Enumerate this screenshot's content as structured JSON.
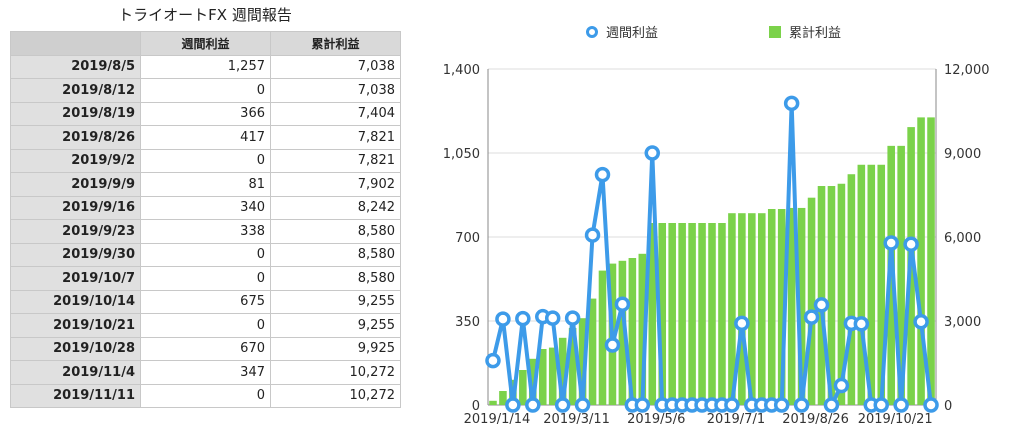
{
  "table": {
    "title": "トライオートFX 週間報告",
    "headers": [
      "",
      "週間利益",
      "累計利益"
    ],
    "rows": [
      [
        "2019/8/5",
        "1,257",
        "7,038"
      ],
      [
        "2019/8/12",
        "0",
        "7,038"
      ],
      [
        "2019/8/19",
        "366",
        "7,404"
      ],
      [
        "2019/8/26",
        "417",
        "7,821"
      ],
      [
        "2019/9/2",
        "0",
        "7,821"
      ],
      [
        "2019/9/9",
        "81",
        "7,902"
      ],
      [
        "2019/9/16",
        "340",
        "8,242"
      ],
      [
        "2019/9/23",
        "338",
        "8,580"
      ],
      [
        "2019/9/30",
        "0",
        "8,580"
      ],
      [
        "2019/10/7",
        "0",
        "8,580"
      ],
      [
        "2019/10/14",
        "675",
        "9,255"
      ],
      [
        "2019/10/21",
        "0",
        "9,255"
      ],
      [
        "2019/10/28",
        "670",
        "9,925"
      ],
      [
        "2019/11/4",
        "347",
        "10,272"
      ],
      [
        "2019/11/11",
        "0",
        "10,272"
      ]
    ]
  },
  "chart_data": {
    "type": "bar+line",
    "legend": [
      "週間利益",
      "累計利益"
    ],
    "legend_position": "top",
    "x_tick_labels": [
      "2019/1/14",
      "2019/3/11",
      "2019/5/6",
      "2019/7/1",
      "2019/8/26",
      "2019/10/21"
    ],
    "left_axis": {
      "ticks": [
        "0",
        "350",
        "700",
        "1,050",
        "1,400"
      ],
      "range": [
        0,
        1400
      ]
    },
    "right_axis": {
      "ticks": [
        "0",
        "3,000",
        "6,000",
        "9,000",
        "12,000"
      ],
      "range": [
        0,
        12000
      ]
    },
    "grid": "horizontal",
    "series": [
      {
        "name": "週間利益",
        "type": "line",
        "axis": "left",
        "color": "#3d9be9",
        "values": [
          185,
          358,
          0,
          360,
          0,
          368,
          362,
          0,
          362,
          0,
          708,
          960,
          250,
          420,
          0,
          0,
          1050,
          0,
          0,
          0,
          0,
          0,
          0,
          0,
          0,
          340,
          0,
          0,
          0,
          0,
          1257,
          0,
          366,
          417,
          0,
          81,
          340,
          338,
          0,
          0,
          675,
          0,
          670,
          347,
          0
        ]
      },
      {
        "name": "累計利益",
        "type": "bar",
        "axis": "right",
        "color": "#7bd24a",
        "values": [
          150,
          500,
          900,
          1250,
          1650,
          2000,
          2050,
          2400,
          2750,
          3100,
          3800,
          4800,
          5050,
          5150,
          5250,
          5400,
          6500,
          6500,
          6500,
          6500,
          6500,
          6500,
          6500,
          6500,
          6850,
          6850,
          6850,
          6850,
          7000,
          7000,
          7038,
          7038,
          7404,
          7821,
          7821,
          7902,
          8242,
          8580,
          8580,
          8580,
          9255,
          9255,
          9925,
          10272,
          10272
        ]
      }
    ]
  }
}
